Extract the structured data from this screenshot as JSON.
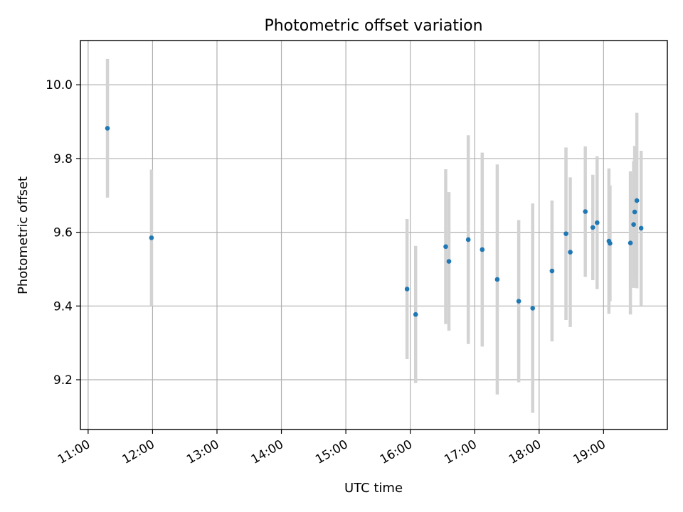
{
  "chart_data": {
    "type": "scatter",
    "title": "Photometric offset variation",
    "xlabel": "UTC time",
    "ylabel": "Photometric offset",
    "x_tick_labels": [
      "11:00",
      "12:00",
      "13:00",
      "14:00",
      "15:00",
      "16:00",
      "17:00",
      "18:00",
      "19:00"
    ],
    "x_ticks_hours": [
      11,
      12,
      13,
      14,
      15,
      16,
      17,
      18,
      19
    ],
    "y_ticks": [
      9.2,
      9.4,
      9.6,
      9.8,
      10.0
    ],
    "y_tick_labels": [
      "9.2",
      "9.4",
      "9.6",
      "9.8",
      "10.0"
    ],
    "xlim_hours": [
      10.88,
      19.99
    ],
    "ylim": [
      9.065,
      10.12
    ],
    "grid": true,
    "colors": {
      "point": "#1f77b4",
      "errorbar": "#d3d3d3",
      "grid": "#b0b0b0"
    },
    "points": [
      {
        "time": "11:18",
        "y": 9.882,
        "yerr": 0.188
      },
      {
        "time": "11:59",
        "y": 9.585,
        "yerr": 0.185
      },
      {
        "time": "15:57",
        "y": 9.446,
        "yerr": 0.19
      },
      {
        "time": "16:05",
        "y": 9.377,
        "yerr": 0.186
      },
      {
        "time": "16:33",
        "y": 9.561,
        "yerr": 0.21
      },
      {
        "time": "16:36",
        "y": 9.521,
        "yerr": 0.188
      },
      {
        "time": "16:54",
        "y": 9.58,
        "yerr": 0.283
      },
      {
        "time": "17:07",
        "y": 9.553,
        "yerr": 0.263
      },
      {
        "time": "17:21",
        "y": 9.472,
        "yerr": 0.312
      },
      {
        "time": "17:41",
        "y": 9.413,
        "yerr": 0.22
      },
      {
        "time": "17:54",
        "y": 9.394,
        "yerr": 0.284
      },
      {
        "time": "18:12",
        "y": 9.495,
        "yerr": 0.191
      },
      {
        "time": "18:25",
        "y": 9.596,
        "yerr": 0.234
      },
      {
        "time": "18:29",
        "y": 9.546,
        "yerr": 0.203
      },
      {
        "time": "18:43",
        "y": 9.656,
        "yerr": 0.177
      },
      {
        "time": "18:50",
        "y": 9.613,
        "yerr": 0.143
      },
      {
        "time": "18:54",
        "y": 9.626,
        "yerr": 0.18
      },
      {
        "time": "19:05",
        "y": 9.576,
        "yerr": 0.197
      },
      {
        "time": "19:06",
        "y": 9.57,
        "yerr": 0.157
      },
      {
        "time": "19:25",
        "y": 9.571,
        "yerr": 0.194
      },
      {
        "time": "19:28",
        "y": 9.621,
        "yerr": 0.172
      },
      {
        "time": "19:29",
        "y": 9.655,
        "yerr": 0.179
      },
      {
        "time": "19:31",
        "y": 9.686,
        "yerr": 0.238
      },
      {
        "time": "19:35",
        "y": 9.611,
        "yerr": 0.21
      }
    ]
  }
}
